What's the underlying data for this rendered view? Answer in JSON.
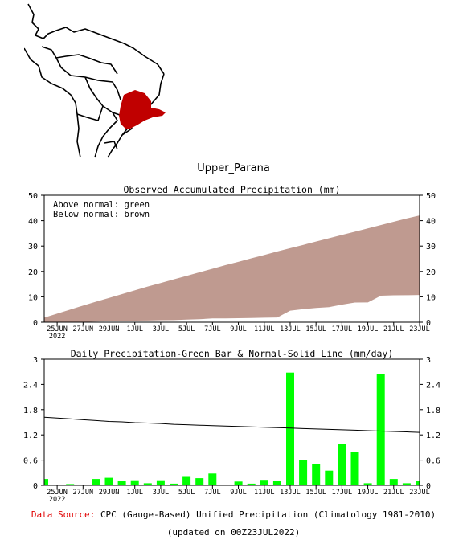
{
  "region_name": "Upper_Parana",
  "colors": {
    "accent_region": "#c00000",
    "above_normal": "#00ff00",
    "below_normal": "#bf9a90",
    "bars": "#00ff00",
    "source_label": "#e00000"
  },
  "chart_data": [
    {
      "type": "area",
      "title": "Observed Accumulated Precipitation (mm)",
      "annotations": [
        "Above normal: green",
        "Below normal: brown"
      ],
      "ylim": [
        0,
        50
      ],
      "yticks": [
        0,
        10,
        20,
        30,
        40,
        50
      ],
      "xtick_labels": [
        "25JUN",
        "27JUN",
        "29JUN",
        "1JUL",
        "3JUL",
        "5JUL",
        "7JUL",
        "9JUL",
        "11JUL",
        "13JUL",
        "15JUL",
        "17JUL",
        "19JUL",
        "21JUL",
        "23JUL"
      ],
      "xtick_year": "2022",
      "x": [
        "24JUN",
        "25JUN",
        "26JUN",
        "27JUN",
        "28JUN",
        "29JUN",
        "30JUN",
        "1JUL",
        "2JUL",
        "3JUL",
        "4JUL",
        "5JUL",
        "6JUL",
        "7JUL",
        "8JUL",
        "9JUL",
        "10JUL",
        "11JUL",
        "12JUL",
        "13JUL",
        "14JUL",
        "15JUL",
        "16JUL",
        "17JUL",
        "18JUL",
        "19JUL",
        "20JUL",
        "21JUL",
        "22JUL",
        "23JUL"
      ],
      "series": [
        {
          "name": "Observed",
          "values": [
            0.15,
            0.17,
            0.2,
            0.22,
            0.37,
            0.55,
            0.66,
            0.78,
            0.83,
            0.95,
            0.99,
            1.19,
            1.36,
            1.64,
            1.66,
            1.75,
            1.79,
            1.92,
            2.02,
            4.7,
            5.3,
            5.8,
            6.1,
            7.1,
            7.9,
            7.95,
            10.6,
            10.75,
            10.8,
            10.9
          ]
        },
        {
          "name": "Normal",
          "values": [
            1.6,
            3.2,
            4.8,
            6.4,
            7.9,
            9.4,
            10.9,
            12.4,
            13.9,
            15.3,
            16.7,
            18.1,
            19.5,
            20.9,
            22.3,
            23.6,
            25.0,
            26.3,
            27.7,
            29.0,
            30.3,
            31.6,
            32.9,
            34.2,
            35.5,
            36.8,
            38.1,
            39.4,
            40.7,
            41.9
          ]
        }
      ]
    },
    {
      "type": "bar",
      "title": "Daily Precipitation-Green Bar & Normal-Solid Line (mm/day)",
      "ylim": [
        0,
        3
      ],
      "yticks": [
        "0",
        "0.6",
        "1.2",
        "1.8",
        "2.4",
        "3"
      ],
      "xtick_labels": [
        "25JUN",
        "27JUN",
        "29JUN",
        "1JUL",
        "3JUL",
        "5JUL",
        "7JUL",
        "9JUL",
        "11JUL",
        "13JUL",
        "15JUL",
        "17JUL",
        "19JUL",
        "21JUL",
        "23JUL"
      ],
      "xtick_year": "2022",
      "x": [
        "24JUN",
        "25JUN",
        "26JUN",
        "27JUN",
        "28JUN",
        "29JUN",
        "30JUN",
        "1JUL",
        "2JUL",
        "3JUL",
        "4JUL",
        "5JUL",
        "6JUL",
        "7JUL",
        "8JUL",
        "9JUL",
        "10JUL",
        "11JUL",
        "12JUL",
        "13JUL",
        "14JUL",
        "15JUL",
        "16JUL",
        "17JUL",
        "18JUL",
        "19JUL",
        "20JUL",
        "21JUL",
        "22JUL",
        "23JUL"
      ],
      "series": [
        {
          "name": "Daily Precipitation",
          "values": [
            0.15,
            0.02,
            0.03,
            0.02,
            0.15,
            0.18,
            0.11,
            0.12,
            0.05,
            0.12,
            0.04,
            0.2,
            0.17,
            0.28,
            0.02,
            0.09,
            0.04,
            0.13,
            0.1,
            2.68,
            0.6,
            0.5,
            0.35,
            0.98,
            0.8,
            0.05,
            2.64,
            0.15,
            0.05,
            0.1
          ]
        },
        {
          "name": "Normal",
          "values": [
            1.62,
            1.6,
            1.58,
            1.56,
            1.54,
            1.52,
            1.51,
            1.49,
            1.48,
            1.47,
            1.45,
            1.44,
            1.43,
            1.42,
            1.41,
            1.4,
            1.39,
            1.38,
            1.37,
            1.36,
            1.35,
            1.34,
            1.33,
            1.32,
            1.31,
            1.3,
            1.29,
            1.28,
            1.27,
            1.26
          ]
        }
      ]
    }
  ],
  "footer": {
    "source_label": "Data Source:",
    "source_text": "CPC (Gauge-Based) Unified Precipitation (Climatology 1981-2010)",
    "updated_text": "(updated on 00Z23JUL2022)"
  }
}
